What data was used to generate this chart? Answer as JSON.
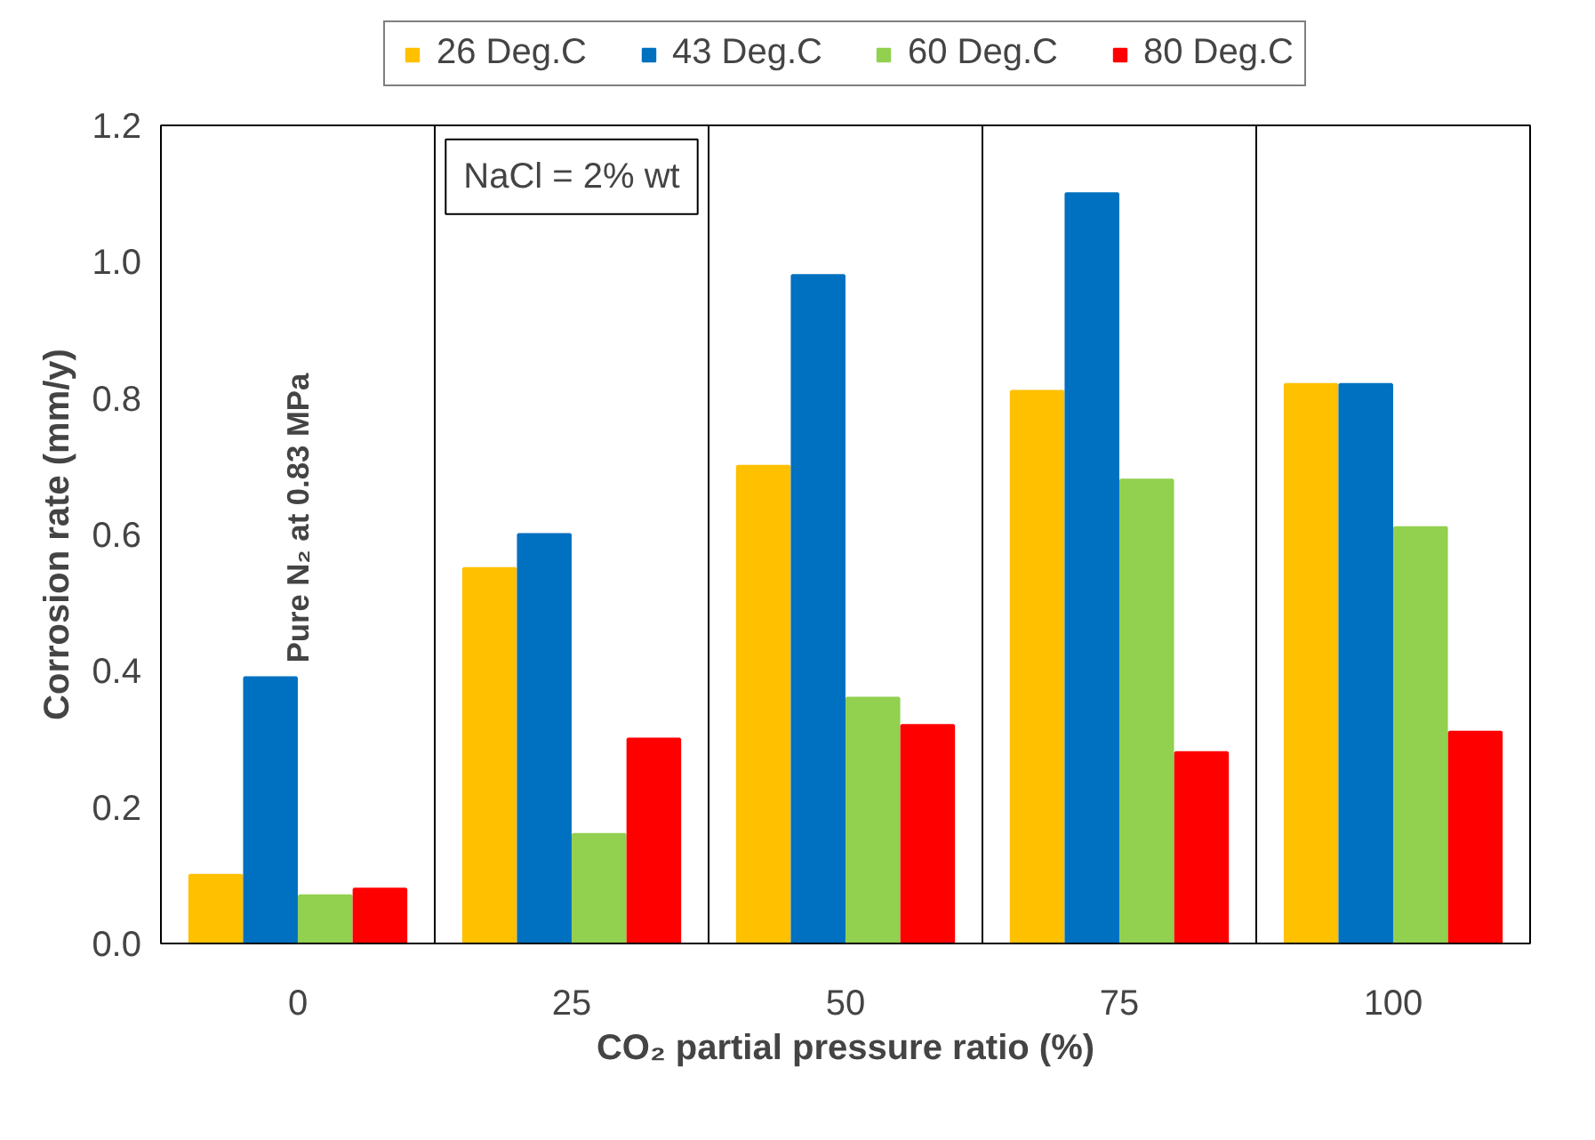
{
  "chart_data": {
    "type": "bar",
    "xlabel": "CO₂ partial pressure ratio (%)",
    "ylabel": "Corrosion rate (mm/y)",
    "categories": [
      "0",
      "25",
      "50",
      "75",
      "100"
    ],
    "series": [
      {
        "name": "26 Deg.C",
        "color": "#ffc000",
        "values": [
          0.1,
          0.55,
          0.7,
          0.81,
          0.82
        ]
      },
      {
        "name": "43 Deg.C",
        "color": "#0070c0",
        "values": [
          0.39,
          0.6,
          0.98,
          1.1,
          0.82
        ]
      },
      {
        "name": "60 Deg.C",
        "color": "#92d050",
        "values": [
          0.07,
          0.16,
          0.36,
          0.68,
          0.61
        ]
      },
      {
        "name": "80 Deg.C",
        "color": "#ff0000",
        "values": [
          0.08,
          0.3,
          0.32,
          0.28,
          0.31
        ]
      }
    ],
    "ylim": [
      0,
      1.2
    ],
    "yticks": [
      {
        "value": 0,
        "label": "0.0"
      },
      0.2,
      0.4,
      0.6,
      0.8,
      {
        "value": 1,
        "label": "1.0"
      },
      1.2
    ],
    "grid": "x",
    "legend": "top",
    "annotations": [
      "Pure N₂ at 0.83 MPa",
      "NaCl = 2% wt"
    ]
  }
}
